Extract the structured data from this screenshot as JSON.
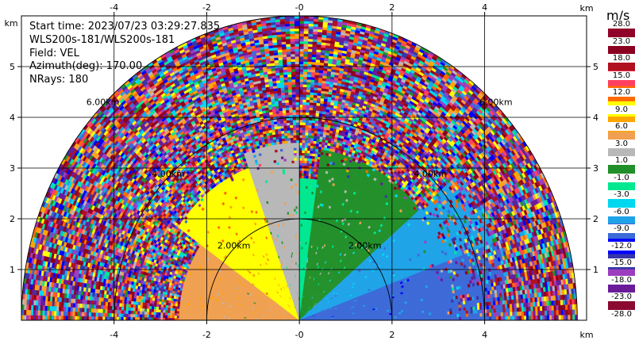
{
  "info": {
    "start_time": "Start time: 2023/07/23 03:29:27.835",
    "instrument": "WLS200s-181/WLS200s-181",
    "field": "Field: VEL",
    "azimuth": "Azimuth(deg): 170.00",
    "nrays": "NRays: 180"
  },
  "chart_data": {
    "type": "heatmap",
    "projection": "polar-rhi",
    "xlim": [
      -6.0,
      6.2
    ],
    "ylim": [
      0,
      6.0
    ],
    "x_unit_label": "km",
    "y_unit_label": "km",
    "x_ticks": [
      -4,
      -2,
      0,
      2,
      4
    ],
    "x_tick_labels": [
      "-4",
      "-2",
      "-0",
      "2",
      "4"
    ],
    "y_ticks": [
      1,
      2,
      3,
      4,
      5
    ],
    "y_tick_labels": [
      "1",
      "2",
      "3",
      "4",
      "5"
    ],
    "grid": true,
    "range_rings_km": [
      2,
      4,
      6
    ],
    "range_ring_labels": [
      {
        "text": "2.00km",
        "az_deg": 45,
        "r": 2
      },
      {
        "text": "2.00km",
        "az_deg": 135,
        "r": 2
      },
      {
        "text": "4.00km",
        "az_deg": 45,
        "r": 4
      },
      {
        "text": "4.00km",
        "az_deg": 135,
        "r": 4
      },
      {
        "text": "6.00km",
        "az_deg": 45,
        "r": 6
      },
      {
        "text": "6.00km",
        "az_deg": 135,
        "r": 6
      }
    ],
    "max_range_km": 6.0,
    "colorbar": {
      "title": "m/s",
      "tick_labels": [
        "-28.0",
        "-23.0",
        "-18.0",
        "-15.0",
        "-12.0",
        "-9.0",
        "-6.0",
        "-3.0",
        "-1.0",
        "1.0",
        "3.0",
        "6.0",
        "9.0",
        "12.0",
        "15.0",
        "18.0",
        "23.0",
        "28.0"
      ],
      "colors": [
        "#8b0a32",
        "#6a1b9a",
        "#9c3dc0",
        "#3636a8",
        "#0000ff",
        "#3c6ad8",
        "#1fa3e8",
        "#00d8f0",
        "#00e890",
        "#22902a",
        "#b8b8b8",
        "#f0a050",
        "#ffa500",
        "#ffff00",
        "#ff6a00",
        "#ff4060",
        "#b01020",
        "#8b0020",
        "#900028"
      ]
    },
    "velocity_regions": [
      {
        "desc": "near surface left",
        "az_min": 0,
        "az_max": 35,
        "r_min": 0,
        "r_max": 2.6,
        "value_mps": 4.5
      },
      {
        "desc": "lower left",
        "az_min": 35,
        "az_max": 70,
        "r_min": 0,
        "r_max": 3.2,
        "value_mps": 10.5
      },
      {
        "desc": "mid left",
        "az_min": 70,
        "az_max": 90,
        "r_min": 0,
        "r_max": 3.5,
        "value_mps": 2.0
      },
      {
        "desc": "vertical",
        "az_min": 88,
        "az_max": 98,
        "r_min": 0,
        "r_max": 2.8,
        "value_mps": -2.0
      },
      {
        "desc": "upper right",
        "az_min": 98,
        "az_max": 140,
        "r_min": 0,
        "r_max": 3.4,
        "value_mps": 0.0
      },
      {
        "desc": "mid right",
        "az_min": 140,
        "az_max": 160,
        "r_min": 0,
        "r_max": 4.5,
        "value_mps": -7.5
      },
      {
        "desc": "low right",
        "az_min": 160,
        "az_max": 180,
        "r_min": 0,
        "r_max": 4.5,
        "value_mps": -10.5
      }
    ]
  }
}
